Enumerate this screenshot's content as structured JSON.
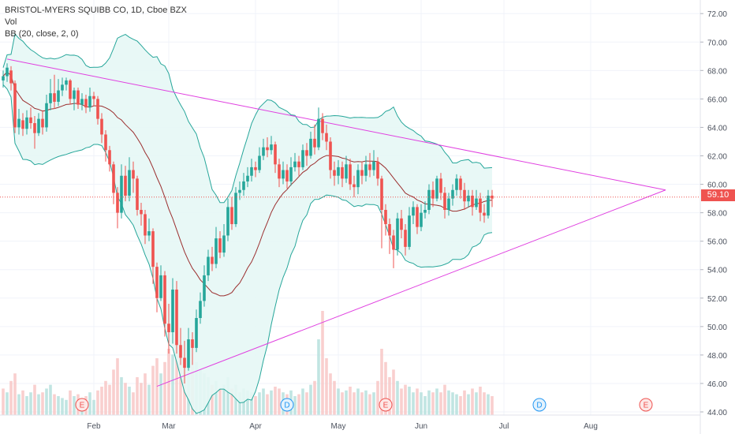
{
  "legend": {
    "title": "BRISTOL-MYERS SQUIBB CO, 1D, Cboe BZX",
    "vol": "Vol",
    "bb": "BB (20, close, 2, 0)"
  },
  "last_price": "59.10",
  "colors": {
    "up": "#26a69a",
    "down": "#ef5350",
    "band": "#26a69a",
    "band_fill": "#e6f7f5",
    "basis": "#9b2f2f",
    "trendline": "#e040e0",
    "last_line": "#ef5350"
  },
  "chart_data": {
    "type": "candlestick",
    "ylim": [
      44,
      72.4
    ],
    "y_ticks": [
      "44.00",
      "46.00",
      "48.00",
      "50.00",
      "52.00",
      "54.00",
      "56.00",
      "58.00",
      "60.00",
      "62.00",
      "64.00",
      "66.00",
      "68.00",
      "70.00",
      "72.00"
    ],
    "x_ticks": [
      {
        "label": "Feb",
        "day": 23
      },
      {
        "label": "Mar",
        "day": 42
      },
      {
        "label": "Apr",
        "day": 64
      },
      {
        "label": "May",
        "day": 85
      },
      {
        "label": "Jun",
        "day": 106
      },
      {
        "label": "Jul",
        "day": 127
      },
      {
        "label": "Aug",
        "day": 149
      }
    ],
    "events": [
      {
        "label": "E",
        "day": 20,
        "kind": "earnings"
      },
      {
        "label": "D",
        "day": 72,
        "kind": "dividend"
      },
      {
        "label": "E",
        "day": 97,
        "kind": "earnings"
      },
      {
        "label": "D",
        "day": 136,
        "kind": "dividend"
      },
      {
        "label": "E",
        "day": 163,
        "kind": "earnings"
      }
    ],
    "trendlines": [
      {
        "from": {
          "day": 1,
          "price": 68.8
        },
        "to": {
          "day": 168,
          "price": 59.6
        }
      },
      {
        "from": {
          "day": 39,
          "price": 45.8
        },
        "to": {
          "day": 168,
          "price": 59.6
        }
      }
    ],
    "last_price": 59.1,
    "candles": [
      [
        0,
        67.3,
        67.6,
        68.0,
        66.8
      ],
      [
        1,
        67.6,
        68.2,
        68.5,
        67.2
      ],
      [
        2,
        68.0,
        67.1,
        68.3,
        66.6
      ],
      [
        3,
        67.1,
        64.0,
        67.3,
        63.6
      ],
      [
        4,
        64.0,
        64.6,
        65.3,
        63.5
      ],
      [
        5,
        64.5,
        63.9,
        65.0,
        63.4
      ],
      [
        6,
        63.9,
        64.7,
        65.2,
        63.5
      ],
      [
        7,
        64.7,
        64.3,
        65.4,
        63.9
      ],
      [
        8,
        64.3,
        63.6,
        64.8,
        62.5
      ],
      [
        9,
        63.6,
        64.6,
        65.0,
        63.4
      ],
      [
        10,
        64.6,
        64.0,
        65.2,
        63.5
      ],
      [
        11,
        64.0,
        65.7,
        66.3,
        63.7
      ],
      [
        12,
        65.7,
        66.4,
        67.4,
        65.2
      ],
      [
        13,
        66.4,
        65.8,
        67.7,
        65.3
      ],
      [
        14,
        65.8,
        66.6,
        67.4,
        65.5
      ],
      [
        15,
        66.6,
        67.0,
        67.5,
        66.2
      ],
      [
        16,
        67.0,
        67.3,
        67.5,
        66.6
      ],
      [
        17,
        67.3,
        66.0,
        67.4,
        65.6
      ],
      [
        18,
        66.0,
        66.6,
        66.8,
        65.2
      ],
      [
        19,
        66.6,
        65.6,
        66.8,
        65.3
      ],
      [
        20,
        65.6,
        66.0,
        66.4,
        65.2
      ],
      [
        21,
        66.0,
        65.4,
        66.3,
        65.0
      ],
      [
        22,
        65.4,
        66.2,
        66.8,
        65.1
      ],
      [
        23,
        66.2,
        66.0,
        66.5,
        65.5
      ],
      [
        24,
        66.0,
        64.6,
        66.2,
        64.2
      ],
      [
        25,
        64.6,
        63.5,
        65.0,
        62.9
      ],
      [
        26,
        63.5,
        62.4,
        63.8,
        61.6
      ],
      [
        27,
        62.4,
        61.4,
        62.7,
        60.9
      ],
      [
        28,
        61.4,
        59.4,
        61.6,
        58.6
      ],
      [
        29,
        59.4,
        58.0,
        59.8,
        56.9
      ],
      [
        30,
        58.0,
        60.6,
        61.4,
        57.6
      ],
      [
        31,
        60.6,
        59.2,
        61.3,
        58.8
      ],
      [
        32,
        59.2,
        61.0,
        61.9,
        58.8
      ],
      [
        33,
        61.0,
        60.4,
        61.6,
        59.4
      ],
      [
        34,
        60.4,
        58.2,
        60.6,
        57.8
      ],
      [
        35,
        58.2,
        57.9,
        58.7,
        57.1
      ],
      [
        36,
        57.9,
        56.4,
        58.2,
        55.8
      ],
      [
        37,
        56.4,
        56.7,
        57.6,
        56.0
      ],
      [
        38,
        56.7,
        54.2,
        56.9,
        53.0
      ],
      [
        39,
        54.2,
        52.0,
        54.5,
        51.0
      ],
      [
        40,
        52.0,
        53.6,
        54.3,
        51.8
      ],
      [
        41,
        53.6,
        50.2,
        53.9,
        49.3
      ],
      [
        42,
        50.2,
        49.6,
        51.6,
        48.1
      ],
      [
        43,
        49.6,
        52.6,
        53.4,
        48.8
      ],
      [
        44,
        52.6,
        48.7,
        53.2,
        48.1
      ],
      [
        45,
        48.7,
        47.8,
        49.9,
        47.3
      ],
      [
        46,
        47.8,
        47.1,
        49.0,
        46.0
      ],
      [
        47,
        47.1,
        49.1,
        49.9,
        46.9
      ],
      [
        48,
        49.1,
        48.5,
        49.6,
        47.3
      ],
      [
        49,
        48.5,
        50.6,
        51.2,
        48.2
      ],
      [
        50,
        50.6,
        51.8,
        52.4,
        50.2
      ],
      [
        51,
        51.8,
        53.6,
        54.3,
        51.4
      ],
      [
        52,
        53.6,
        54.9,
        55.4,
        53.2
      ],
      [
        53,
        54.9,
        54.4,
        55.6,
        53.9
      ],
      [
        54,
        54.4,
        56.2,
        57.0,
        54.1
      ],
      [
        55,
        56.2,
        55.2,
        56.7,
        54.8
      ],
      [
        56,
        55.2,
        56.4,
        57.2,
        54.9
      ],
      [
        57,
        56.4,
        58.4,
        59.0,
        56.0
      ],
      [
        58,
        58.4,
        57.2,
        59.1,
        56.8
      ],
      [
        59,
        57.2,
        59.4,
        59.8,
        57.0
      ],
      [
        60,
        59.4,
        59.6,
        60.2,
        58.9
      ],
      [
        61,
        59.6,
        60.2,
        60.8,
        59.2
      ],
      [
        62,
        60.2,
        60.6,
        61.2,
        59.8
      ],
      [
        63,
        60.6,
        61.2,
        61.8,
        60.2
      ],
      [
        64,
        61.2,
        61.0,
        61.6,
        60.5
      ],
      [
        65,
        61.0,
        62.0,
        62.6,
        60.8
      ],
      [
        66,
        62.0,
        62.6,
        63.2,
        61.7
      ],
      [
        67,
        62.6,
        62.4,
        63.3,
        61.9
      ],
      [
        68,
        62.4,
        62.8,
        63.4,
        62.1
      ],
      [
        69,
        62.8,
        61.4,
        63.0,
        60.8
      ],
      [
        70,
        61.4,
        60.4,
        61.8,
        59.8
      ],
      [
        71,
        60.4,
        61.0,
        61.6,
        60.0
      ],
      [
        72,
        61.0,
        60.2,
        61.4,
        59.7
      ],
      [
        73,
        60.2,
        61.2,
        61.9,
        59.9
      ],
      [
        74,
        61.2,
        61.6,
        62.2,
        60.9
      ],
      [
        75,
        61.6,
        61.2,
        62.0,
        60.6
      ],
      [
        76,
        61.2,
        62.4,
        62.8,
        61.0
      ],
      [
        77,
        62.4,
        62.0,
        62.9,
        61.3
      ],
      [
        78,
        62.0,
        63.2,
        63.7,
        61.8
      ],
      [
        79,
        63.2,
        62.6,
        64.2,
        62.1
      ],
      [
        80,
        62.6,
        64.6,
        65.4,
        62.4
      ],
      [
        81,
        64.6,
        63.6,
        65.0,
        63.1
      ],
      [
        82,
        63.6,
        63.0,
        64.2,
        62.4
      ],
      [
        83,
        63.0,
        61.0,
        63.3,
        60.4
      ],
      [
        84,
        61.0,
        60.6,
        61.6,
        59.9
      ],
      [
        85,
        60.6,
        61.2,
        61.7,
        60.0
      ],
      [
        86,
        61.2,
        60.4,
        61.6,
        59.8
      ],
      [
        87,
        60.4,
        61.4,
        62.0,
        60.1
      ],
      [
        88,
        61.4,
        60.0,
        61.8,
        59.6
      ],
      [
        89,
        60.0,
        59.8,
        60.6,
        59.1
      ],
      [
        90,
        59.8,
        61.0,
        61.4,
        59.3
      ],
      [
        91,
        61.0,
        60.6,
        61.6,
        60.0
      ],
      [
        92,
        60.6,
        61.4,
        62.0,
        60.2
      ],
      [
        93,
        61.4,
        61.0,
        62.2,
        60.5
      ],
      [
        94,
        61.0,
        61.6,
        62.4,
        60.6
      ],
      [
        95,
        61.6,
        60.4,
        61.9,
        59.9
      ],
      [
        96,
        60.4,
        58.2,
        60.6,
        55.5
      ],
      [
        97,
        58.2,
        57.2,
        58.6,
        56.4
      ],
      [
        98,
        57.2,
        56.4,
        57.6,
        55.1
      ],
      [
        99,
        56.4,
        55.4,
        56.8,
        54.1
      ],
      [
        100,
        55.4,
        57.6,
        58.0,
        55.0
      ],
      [
        101,
        57.6,
        56.8,
        58.2,
        56.2
      ],
      [
        102,
        56.8,
        55.6,
        57.2,
        55.0
      ],
      [
        103,
        55.6,
        57.8,
        58.4,
        55.4
      ],
      [
        104,
        57.8,
        58.4,
        58.8,
        57.2
      ],
      [
        105,
        58.4,
        57.0,
        58.6,
        56.5
      ],
      [
        106,
        57.0,
        58.0,
        58.6,
        56.7
      ],
      [
        107,
        58.0,
        58.2,
        58.8,
        57.6
      ],
      [
        108,
        58.2,
        59.6,
        60.0,
        57.9
      ],
      [
        109,
        59.6,
        59.0,
        60.2,
        58.4
      ],
      [
        110,
        59.0,
        60.4,
        60.6,
        58.8
      ],
      [
        111,
        60.4,
        59.4,
        60.8,
        58.9
      ],
      [
        112,
        59.4,
        58.2,
        59.8,
        57.6
      ],
      [
        113,
        58.2,
        59.0,
        59.4,
        57.8
      ],
      [
        114,
        59.0,
        59.6,
        60.0,
        58.5
      ],
      [
        115,
        59.6,
        60.4,
        60.7,
        59.2
      ],
      [
        116,
        60.4,
        59.6,
        60.6,
        59.0
      ],
      [
        117,
        59.6,
        58.8,
        60.1,
        58.2
      ],
      [
        118,
        58.8,
        59.2,
        59.6,
        58.4
      ],
      [
        119,
        59.2,
        58.4,
        59.6,
        57.8
      ],
      [
        120,
        58.4,
        59.0,
        59.6,
        58.2
      ],
      [
        121,
        59.0,
        58.0,
        59.4,
        57.4
      ],
      [
        122,
        58.0,
        57.8,
        58.6,
        57.3
      ],
      [
        123,
        57.8,
        59.2,
        59.6,
        57.6
      ],
      [
        124,
        59.2,
        59.0,
        59.6,
        58.4
      ]
    ],
    "volume": [
      [
        0,
        14,
        0
      ],
      [
        1,
        12,
        1
      ],
      [
        2,
        18,
        0
      ],
      [
        3,
        22,
        0
      ],
      [
        4,
        11,
        1
      ],
      [
        5,
        13,
        0
      ],
      [
        6,
        10,
        1
      ],
      [
        7,
        12,
        1
      ],
      [
        8,
        16,
        0
      ],
      [
        9,
        11,
        1
      ],
      [
        10,
        12,
        0
      ],
      [
        11,
        14,
        1
      ],
      [
        12,
        16,
        1
      ],
      [
        13,
        11,
        0
      ],
      [
        14,
        10,
        1
      ],
      [
        15,
        9,
        1
      ],
      [
        16,
        8,
        1
      ],
      [
        17,
        13,
        0
      ],
      [
        18,
        10,
        1
      ],
      [
        19,
        11,
        0
      ],
      [
        20,
        9,
        1
      ],
      [
        21,
        10,
        0
      ],
      [
        22,
        12,
        1
      ],
      [
        23,
        8,
        1
      ],
      [
        24,
        13,
        0
      ],
      [
        25,
        15,
        0
      ],
      [
        26,
        18,
        0
      ],
      [
        27,
        16,
        0
      ],
      [
        28,
        24,
        0
      ],
      [
        29,
        30,
        0
      ],
      [
        30,
        20,
        1
      ],
      [
        31,
        17,
        0
      ],
      [
        32,
        15,
        1
      ],
      [
        33,
        12,
        0
      ],
      [
        34,
        20,
        0
      ],
      [
        35,
        17,
        0
      ],
      [
        36,
        22,
        0
      ],
      [
        37,
        16,
        1
      ],
      [
        38,
        26,
        0
      ],
      [
        39,
        30,
        0
      ],
      [
        40,
        22,
        1
      ],
      [
        41,
        28,
        0
      ],
      [
        42,
        35,
        0
      ],
      [
        43,
        32,
        1
      ],
      [
        44,
        40,
        0
      ],
      [
        45,
        36,
        0
      ],
      [
        46,
        30,
        0
      ],
      [
        47,
        34,
        1
      ],
      [
        48,
        26,
        0
      ],
      [
        49,
        28,
        1
      ],
      [
        50,
        24,
        1
      ],
      [
        51,
        22,
        1
      ],
      [
        52,
        20,
        1
      ],
      [
        53,
        16,
        0
      ],
      [
        54,
        18,
        1
      ],
      [
        55,
        14,
        0
      ],
      [
        56,
        16,
        1
      ],
      [
        57,
        20,
        1
      ],
      [
        58,
        14,
        0
      ],
      [
        59,
        16,
        1
      ],
      [
        60,
        12,
        1
      ],
      [
        61,
        14,
        1
      ],
      [
        62,
        13,
        1
      ],
      [
        63,
        12,
        1
      ],
      [
        64,
        10,
        0
      ],
      [
        65,
        12,
        1
      ],
      [
        66,
        14,
        1
      ],
      [
        67,
        11,
        0
      ],
      [
        68,
        13,
        1
      ],
      [
        69,
        15,
        0
      ],
      [
        70,
        14,
        0
      ],
      [
        71,
        12,
        1
      ],
      [
        72,
        11,
        0
      ],
      [
        73,
        13,
        1
      ],
      [
        74,
        10,
        1
      ],
      [
        75,
        11,
        0
      ],
      [
        76,
        14,
        1
      ],
      [
        77,
        12,
        0
      ],
      [
        78,
        16,
        1
      ],
      [
        79,
        18,
        0
      ],
      [
        80,
        40,
        1
      ],
      [
        81,
        55,
        0
      ],
      [
        82,
        30,
        0
      ],
      [
        83,
        22,
        0
      ],
      [
        84,
        18,
        0
      ],
      [
        85,
        14,
        1
      ],
      [
        86,
        12,
        0
      ],
      [
        87,
        13,
        1
      ],
      [
        88,
        15,
        0
      ],
      [
        89,
        12,
        0
      ],
      [
        90,
        14,
        1
      ],
      [
        91,
        12,
        0
      ],
      [
        92,
        13,
        1
      ],
      [
        93,
        11,
        0
      ],
      [
        94,
        12,
        1
      ],
      [
        95,
        18,
        0
      ],
      [
        96,
        35,
        0
      ],
      [
        97,
        28,
        0
      ],
      [
        98,
        20,
        0
      ],
      [
        99,
        24,
        0
      ],
      [
        100,
        18,
        1
      ],
      [
        101,
        14,
        0
      ],
      [
        102,
        16,
        0
      ],
      [
        103,
        15,
        1
      ],
      [
        104,
        12,
        1
      ],
      [
        105,
        14,
        0
      ],
      [
        106,
        12,
        1
      ],
      [
        107,
        10,
        1
      ],
      [
        108,
        13,
        1
      ],
      [
        109,
        12,
        0
      ],
      [
        110,
        14,
        1
      ],
      [
        111,
        12,
        0
      ],
      [
        112,
        16,
        0
      ],
      [
        113,
        13,
        1
      ],
      [
        114,
        12,
        1
      ],
      [
        115,
        11,
        1
      ],
      [
        116,
        10,
        0
      ],
      [
        117,
        13,
        0
      ],
      [
        118,
        11,
        1
      ],
      [
        119,
        14,
        0
      ],
      [
        120,
        12,
        1
      ],
      [
        121,
        15,
        0
      ],
      [
        122,
        12,
        0
      ],
      [
        123,
        11,
        1
      ],
      [
        124,
        10,
        0
      ]
    ]
  }
}
